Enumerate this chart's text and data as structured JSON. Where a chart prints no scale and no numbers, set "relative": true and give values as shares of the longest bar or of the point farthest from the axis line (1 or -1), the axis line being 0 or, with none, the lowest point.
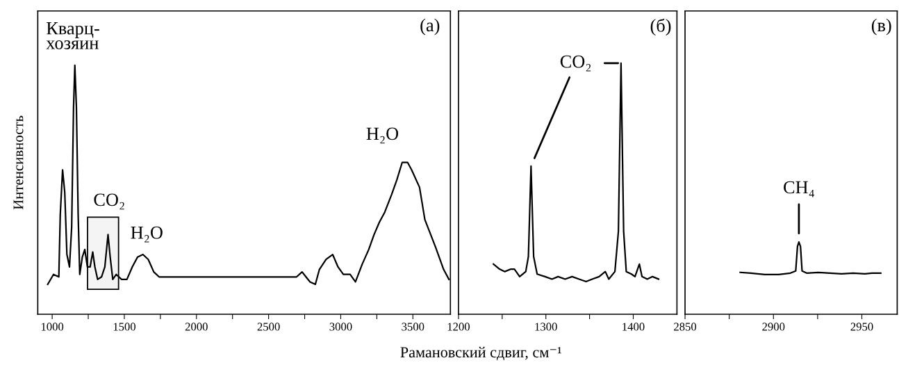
{
  "chart_data": [
    {
      "type": "line",
      "relative": true,
      "ylabel": "Интенсивность",
      "xlabel": "Рамановский сдвиг, см⁻¹",
      "tick_labels": "x",
      "line_style": "solid",
      "xlim": [
        900,
        3760
      ],
      "xticks": [
        1000,
        {
          "value": 1250,
          "label": null
        },
        1500,
        {
          "value": 1750,
          "label": null
        },
        2000,
        {
          "value": 2250,
          "label": null
        },
        2500,
        {
          "value": 2750,
          "label": null
        },
        3000,
        {
          "value": 3250,
          "label": null
        },
        3500
      ],
      "bands": [
        {
          "axis": "x",
          "from": 1245,
          "to": 1460,
          "label": "CO₂",
          "color": "#000000"
        }
      ],
      "annotations": [
        "(а)",
        "Кварц-\nхозяин",
        {
          "text": "H₂O",
          "x": 1629,
          "y": 0.24
        },
        {
          "text": "H₂O",
          "x": 3463,
          "y": 0.61
        }
      ],
      "series": [
        {
          "color": "#000000",
          "x": [
            969,
            1009,
            1046,
            1056,
            1072,
            1087,
            1102,
            1120,
            1135,
            1148,
            1157,
            1168,
            1180,
            1191,
            1209,
            1226,
            1244,
            1263,
            1281,
            1296,
            1315,
            1342,
            1365,
            1387,
            1402,
            1420,
            1444,
            1481,
            1518,
            1555,
            1592,
            1629,
            1666,
            1704,
            1741,
            2176,
            2694,
            2732,
            2759,
            2787,
            2824,
            2852,
            2898,
            2944,
            2981,
            3018,
            3065,
            3102,
            3148,
            3194,
            3231,
            3268,
            3305,
            3352,
            3389,
            3426,
            3463,
            3491,
            3546,
            3583,
            3657,
            3713,
            3750
          ],
          "values": [
            0.12,
            0.16,
            0.15,
            0.4,
            0.58,
            0.49,
            0.24,
            0.19,
            0.35,
            0.83,
            1.0,
            0.83,
            0.4,
            0.16,
            0.23,
            0.26,
            0.19,
            0.19,
            0.25,
            0.19,
            0.14,
            0.15,
            0.19,
            0.32,
            0.23,
            0.14,
            0.16,
            0.14,
            0.14,
            0.19,
            0.23,
            0.24,
            0.22,
            0.17,
            0.15,
            0.15,
            0.15,
            0.17,
            0.15,
            0.13,
            0.12,
            0.18,
            0.22,
            0.24,
            0.19,
            0.16,
            0.16,
            0.13,
            0.2,
            0.26,
            0.32,
            0.37,
            0.41,
            0.48,
            0.54,
            0.61,
            0.61,
            0.58,
            0.51,
            0.38,
            0.27,
            0.18,
            0.14
          ]
        }
      ]
    },
    {
      "type": "line",
      "relative": true,
      "tick_labels": "x",
      "line_style": "solid",
      "xlim": [
        1200,
        1450
      ],
      "xticks": [
        1200,
        {
          "value": 1250,
          "label": null
        },
        1300,
        {
          "value": 1350,
          "label": null
        },
        1400
      ],
      "annotations": [
        "(б)",
        {
          "text": "CO₂",
          "x": 1386,
          "y": 1.0
        }
      ],
      "series": [
        {
          "color": "#000000",
          "x": [
            1240,
            1247,
            1253,
            1260,
            1264,
            1270,
            1277,
            1280,
            1283,
            1286,
            1290,
            1299,
            1307,
            1314,
            1322,
            1330,
            1338,
            1346,
            1353,
            1361,
            1368,
            1372,
            1379,
            1383,
            1386,
            1389,
            1392,
            1398,
            1402,
            1407,
            1410,
            1416,
            1422,
            1429
          ],
          "values": [
            0.2,
            0.18,
            0.17,
            0.18,
            0.18,
            0.15,
            0.17,
            0.23,
            0.59,
            0.23,
            0.16,
            0.15,
            0.14,
            0.15,
            0.14,
            0.15,
            0.14,
            0.13,
            0.14,
            0.15,
            0.17,
            0.14,
            0.17,
            0.33,
            1.0,
            0.33,
            0.17,
            0.16,
            0.15,
            0.2,
            0.15,
            0.14,
            0.15,
            0.14
          ]
        }
      ]
    },
    {
      "type": "line",
      "relative": true,
      "tick_labels": "x",
      "line_style": "solid",
      "xlim": [
        2850,
        2970
      ],
      "xticks": [
        2850,
        {
          "value": 2875,
          "label": null
        },
        2900,
        {
          "value": 2925,
          "label": null
        },
        2950
      ],
      "annotations": [
        "(в)",
        {
          "text": "CH₄",
          "x": 2914.4,
          "y": 1.0
        }
      ],
      "series": [
        {
          "color": "#000000",
          "x": [
            2881.2,
            2887.2,
            2895.1,
            2903,
            2909.6,
            2912.6,
            2913.6,
            2914.4,
            2915.3,
            2916.2,
            2918.8,
            2925.4,
            2932,
            2938.5,
            2945.1,
            2951.7,
            2955.7,
            2960.7
          ],
          "values": [
            0.58,
            0.57,
            0.55,
            0.55,
            0.57,
            0.6,
            0.94,
            1.0,
            0.94,
            0.6,
            0.57,
            0.58,
            0.57,
            0.56,
            0.57,
            0.56,
            0.57,
            0.57
          ]
        }
      ]
    }
  ]
}
